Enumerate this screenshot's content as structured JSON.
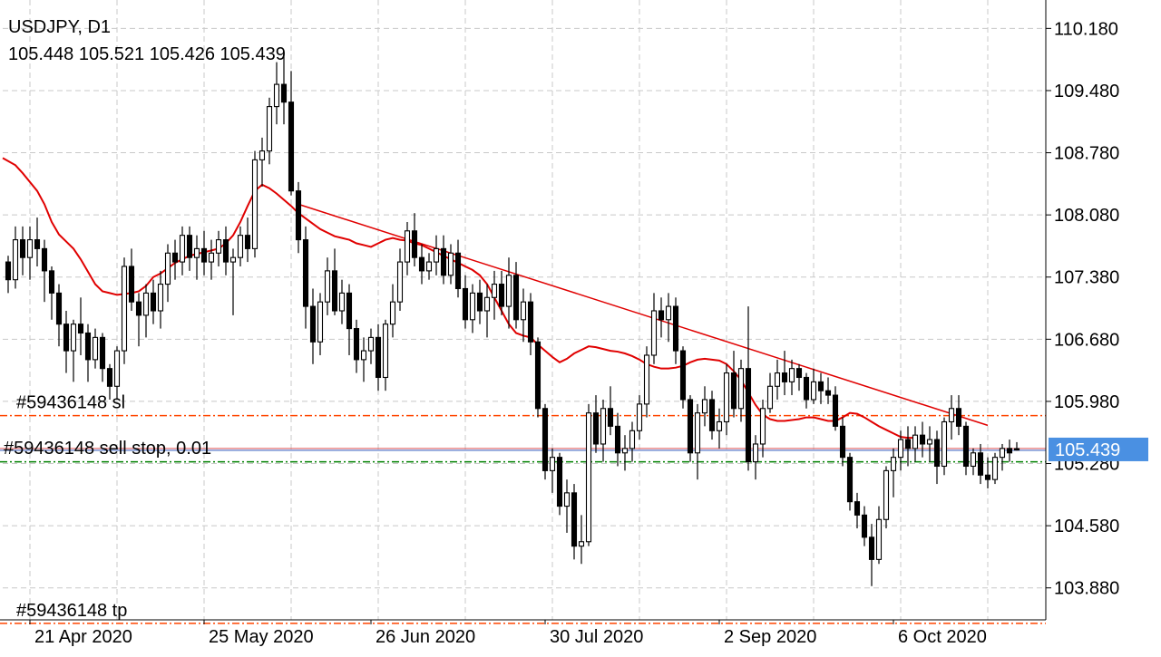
{
  "header": {
    "symbol_timeframe": "USDJPY, D1",
    "ohlc": "105.448 105.521 105.426 105.439"
  },
  "price_axis": {
    "current_price_label": "105.439"
  },
  "orders": {
    "sl_label": "#59436148 sl",
    "pending_label": "#59436148 sell stop, 0.01",
    "tp_label": "#59436148 tp"
  },
  "colors": {
    "background": "#ffffff",
    "grid": "#c8c8c8",
    "candle": "#000000",
    "moving_average": "#e00000",
    "trendline": "#e00000",
    "sl_line": "#ff4500",
    "tp_line": "#ff4500",
    "order_line": "#008000",
    "price_line": "#4a6fc7",
    "price_tag_bg": "#4a90e2"
  },
  "chart_data": {
    "type": "candlestick",
    "symbol": "USDJPY",
    "timeframe": "D1",
    "ylim": [
      103.52,
      110.5
    ],
    "yticks": [
      110.18,
      109.48,
      108.78,
      108.08,
      107.38,
      106.68,
      105.98,
      105.28,
      104.58,
      103.88
    ],
    "ytick_labels": [
      "110.180",
      "109.480",
      "108.780",
      "108.080",
      "107.380",
      "106.680",
      "105.980",
      "105.280",
      "104.580",
      "103.880"
    ],
    "xtick_labels": [
      "21 Apr 2020",
      "25 May 2020",
      "26 Jun 2020",
      "30 Jul 2020",
      "2 Sep 2020",
      "6 Oct 2020"
    ],
    "xtick_bars": [
      3,
      27,
      50,
      74,
      98,
      122
    ],
    "grid": true,
    "current_price": 105.439,
    "levels": {
      "stop_loss": 105.82,
      "sell_stop": 105.45,
      "order_marker": 105.3,
      "take_profit": 103.48
    },
    "trendline": {
      "start_bar": 40,
      "start_price": 108.2,
      "end_bar": 135,
      "end_price": 105.71
    },
    "candles": [
      [
        107.55,
        107.62,
        107.2,
        107.35
      ],
      [
        107.35,
        107.95,
        107.25,
        107.8
      ],
      [
        107.8,
        107.95,
        107.4,
        107.6
      ],
      [
        107.6,
        107.95,
        107.35,
        107.8
      ],
      [
        107.8,
        108.05,
        107.5,
        107.7
      ],
      [
        107.7,
        107.8,
        107.1,
        107.45
      ],
      [
        107.45,
        107.5,
        106.9,
        107.2
      ],
      [
        107.2,
        107.3,
        106.6,
        106.85
      ],
      [
        106.85,
        107.0,
        106.3,
        106.55
      ],
      [
        106.55,
        106.9,
        106.2,
        106.85
      ],
      [
        106.85,
        107.15,
        106.5,
        106.75
      ],
      [
        106.75,
        106.85,
        106.2,
        106.45
      ],
      [
        106.45,
        106.8,
        106.35,
        106.7
      ],
      [
        106.7,
        106.75,
        106.2,
        106.35
      ],
      [
        106.35,
        106.4,
        106.0,
        106.15
      ],
      [
        106.15,
        106.6,
        106.0,
        106.55
      ],
      [
        106.55,
        107.6,
        106.4,
        107.5
      ],
      [
        107.5,
        107.7,
        107.0,
        107.1
      ],
      [
        107.1,
        107.2,
        106.6,
        106.95
      ],
      [
        106.95,
        107.3,
        106.7,
        107.2
      ],
      [
        107.2,
        107.35,
        106.85,
        107.0
      ],
      [
        107.0,
        107.45,
        106.8,
        107.3
      ],
      [
        107.3,
        107.75,
        107.1,
        107.65
      ],
      [
        107.65,
        107.8,
        107.35,
        107.55
      ],
      [
        107.55,
        107.95,
        107.4,
        107.85
      ],
      [
        107.85,
        107.95,
        107.45,
        107.6
      ],
      [
        107.6,
        107.85,
        107.35,
        107.7
      ],
      [
        107.7,
        107.9,
        107.4,
        107.55
      ],
      [
        107.55,
        107.8,
        107.35,
        107.65
      ],
      [
        107.65,
        107.9,
        107.5,
        107.8
      ],
      [
        107.8,
        107.95,
        107.4,
        107.55
      ],
      [
        107.55,
        107.7,
        106.95,
        107.6
      ],
      [
        107.6,
        107.95,
        107.5,
        107.85
      ],
      [
        107.85,
        108.05,
        107.55,
        107.7
      ],
      [
        107.7,
        108.8,
        107.6,
        108.7
      ],
      [
        108.7,
        108.95,
        108.4,
        108.8
      ],
      [
        108.8,
        109.4,
        108.65,
        109.3
      ],
      [
        109.3,
        109.8,
        109.1,
        109.55
      ],
      [
        109.55,
        109.9,
        109.1,
        109.35
      ],
      [
        109.35,
        109.7,
        108.3,
        108.35
      ],
      [
        108.35,
        108.45,
        107.65,
        107.8
      ],
      [
        107.8,
        107.95,
        106.8,
        107.05
      ],
      [
        107.05,
        107.25,
        106.4,
        106.65
      ],
      [
        106.65,
        107.2,
        106.5,
        107.1
      ],
      [
        107.1,
        107.6,
        106.95,
        107.45
      ],
      [
        107.45,
        107.7,
        106.95,
        107.0
      ],
      [
        107.0,
        107.35,
        106.85,
        107.2
      ],
      [
        107.2,
        107.3,
        106.5,
        106.8
      ],
      [
        106.8,
        106.9,
        106.3,
        106.45
      ],
      [
        106.45,
        106.7,
        106.2,
        106.55
      ],
      [
        106.55,
        106.8,
        106.4,
        106.7
      ],
      [
        106.7,
        106.85,
        106.1,
        106.25
      ],
      [
        106.25,
        106.9,
        106.1,
        106.85
      ],
      [
        106.85,
        107.3,
        106.7,
        107.1
      ],
      [
        107.1,
        107.7,
        107.0,
        107.55
      ],
      [
        107.55,
        108.0,
        107.4,
        107.9
      ],
      [
        107.9,
        108.1,
        107.5,
        107.6
      ],
      [
        107.6,
        107.75,
        107.3,
        107.45
      ],
      [
        107.45,
        107.65,
        107.35,
        107.55
      ],
      [
        107.55,
        107.85,
        107.4,
        107.7
      ],
      [
        107.7,
        107.85,
        107.3,
        107.4
      ],
      [
        107.4,
        107.75,
        107.3,
        107.65
      ],
      [
        107.65,
        107.8,
        107.15,
        107.25
      ],
      [
        107.25,
        107.4,
        106.8,
        106.9
      ],
      [
        106.9,
        107.3,
        106.75,
        107.2
      ],
      [
        107.2,
        107.35,
        106.85,
        107.0
      ],
      [
        107.0,
        107.3,
        106.7,
        107.15
      ],
      [
        107.15,
        107.45,
        106.9,
        107.3
      ],
      [
        107.3,
        107.45,
        106.95,
        107.05
      ],
      [
        107.05,
        107.6,
        106.8,
        107.4
      ],
      [
        107.4,
        107.55,
        106.8,
        106.9
      ],
      [
        106.9,
        107.25,
        106.65,
        107.1
      ],
      [
        107.1,
        107.2,
        106.5,
        106.65
      ],
      [
        106.65,
        106.7,
        105.8,
        105.9
      ],
      [
        105.9,
        105.95,
        105.1,
        105.2
      ],
      [
        105.2,
        105.45,
        104.95,
        105.35
      ],
      [
        105.35,
        105.4,
        104.7,
        104.8
      ],
      [
        104.8,
        105.1,
        104.5,
        104.95
      ],
      [
        104.95,
        105.05,
        104.2,
        104.35
      ],
      [
        104.35,
        104.7,
        104.15,
        104.4
      ],
      [
        104.4,
        105.95,
        104.35,
        105.85
      ],
      [
        105.85,
        106.05,
        105.4,
        105.5
      ],
      [
        105.5,
        106.0,
        105.3,
        105.9
      ],
      [
        105.9,
        106.15,
        105.6,
        105.7
      ],
      [
        105.7,
        105.85,
        105.25,
        105.4
      ],
      [
        105.4,
        105.6,
        105.2,
        105.45
      ],
      [
        105.45,
        105.75,
        105.3,
        105.65
      ],
      [
        105.65,
        106.05,
        105.55,
        105.95
      ],
      [
        105.95,
        106.6,
        105.8,
        106.5
      ],
      [
        106.5,
        107.2,
        106.4,
        107.0
      ],
      [
        107.0,
        107.15,
        106.7,
        106.9
      ],
      [
        106.9,
        107.2,
        106.65,
        107.05
      ],
      [
        107.05,
        107.15,
        106.4,
        106.55
      ],
      [
        106.55,
        106.6,
        105.9,
        106.0
      ],
      [
        106.0,
        106.05,
        105.3,
        105.4
      ],
      [
        105.4,
        105.95,
        105.1,
        105.85
      ],
      [
        105.85,
        106.15,
        105.7,
        106.0
      ],
      [
        106.0,
        106.1,
        105.55,
        105.65
      ],
      [
        105.65,
        105.9,
        105.45,
        105.75
      ],
      [
        105.75,
        106.4,
        105.6,
        106.3
      ],
      [
        106.3,
        106.55,
        105.8,
        105.9
      ],
      [
        105.9,
        106.45,
        105.75,
        106.35
      ],
      [
        106.35,
        107.05,
        105.2,
        105.3
      ],
      [
        105.3,
        105.6,
        105.1,
        105.5
      ],
      [
        105.5,
        106.0,
        105.35,
        105.9
      ],
      [
        105.9,
        106.3,
        105.85,
        106.15
      ],
      [
        106.15,
        106.45,
        106.0,
        106.3
      ],
      [
        106.3,
        106.55,
        106.05,
        106.2
      ],
      [
        106.2,
        106.45,
        106.05,
        106.35
      ],
      [
        106.35,
        106.4,
        106.1,
        106.25
      ],
      [
        106.25,
        106.3,
        105.9,
        106.0
      ],
      [
        106.0,
        106.35,
        105.95,
        106.2
      ],
      [
        106.2,
        106.3,
        105.95,
        106.1
      ],
      [
        106.1,
        106.25,
        105.95,
        106.05
      ],
      [
        106.05,
        106.15,
        105.65,
        105.7
      ],
      [
        105.7,
        105.8,
        105.25,
        105.35
      ],
      [
        105.35,
        105.4,
        104.75,
        104.85
      ],
      [
        104.85,
        104.95,
        104.55,
        104.7
      ],
      [
        104.7,
        104.8,
        104.35,
        104.45
      ],
      [
        104.45,
        104.6,
        103.9,
        104.2
      ],
      [
        104.2,
        104.8,
        104.15,
        104.65
      ],
      [
        104.65,
        105.25,
        104.55,
        105.2
      ],
      [
        105.2,
        105.45,
        104.9,
        105.35
      ],
      [
        105.35,
        105.65,
        105.2,
        105.55
      ],
      [
        105.55,
        105.7,
        105.25,
        105.45
      ],
      [
        105.45,
        105.7,
        105.3,
        105.6
      ],
      [
        105.6,
        105.75,
        105.35,
        105.5
      ],
      [
        105.5,
        105.7,
        105.3,
        105.55
      ],
      [
        105.55,
        105.65,
        105.05,
        105.25
      ],
      [
        105.25,
        105.8,
        105.15,
        105.75
      ],
      [
        105.75,
        106.05,
        105.55,
        105.9
      ],
      [
        105.9,
        106.05,
        105.6,
        105.7
      ],
      [
        105.7,
        105.75,
        105.15,
        105.25
      ],
      [
        105.25,
        105.45,
        105.15,
        105.4
      ],
      [
        105.4,
        105.5,
        105.05,
        105.15
      ],
      [
        105.15,
        105.35,
        105.0,
        105.1
      ],
      [
        105.1,
        105.4,
        105.05,
        105.35
      ],
      [
        105.35,
        105.5,
        105.2,
        105.45
      ],
      [
        105.45,
        105.55,
        105.3,
        105.4
      ],
      [
        105.448,
        105.521,
        105.426,
        105.439
      ]
    ],
    "moving_average": [
      108.72,
      108.64,
      108.55,
      108.45,
      108.35,
      108.2,
      108.0,
      107.86,
      107.78,
      107.7,
      107.58,
      107.44,
      107.3,
      107.22,
      107.2,
      107.18,
      107.19,
      107.2,
      107.22,
      107.28,
      107.38,
      107.42,
      107.48,
      107.54,
      107.58,
      107.62,
      107.64,
      107.66,
      107.68,
      107.7,
      107.76,
      107.85,
      108.0,
      108.18,
      108.35,
      108.42,
      108.38,
      108.32,
      108.25,
      108.18,
      108.1,
      108.04,
      107.98,
      107.92,
      107.88,
      107.84,
      107.82,
      107.8,
      107.76,
      107.74,
      107.72,
      107.76,
      107.8,
      107.82,
      107.8,
      107.79,
      107.76,
      107.74,
      107.7,
      107.66,
      107.62,
      107.58,
      107.54,
      107.5,
      107.46,
      107.4,
      107.3,
      107.15,
      107.0,
      106.85,
      106.75,
      106.72,
      106.7,
      106.62,
      106.55,
      106.48,
      106.42,
      106.46,
      106.52,
      106.56,
      106.6,
      106.59,
      106.57,
      106.55,
      106.54,
      106.52,
      106.49,
      106.45,
      106.4,
      106.37,
      106.35,
      106.35,
      106.36,
      106.38,
      106.42,
      106.45,
      106.46,
      106.45,
      106.44,
      106.4,
      106.32,
      106.22,
      106.08,
      105.94,
      105.83,
      105.78,
      105.76,
      105.76,
      105.77,
      105.78,
      105.8,
      105.8,
      105.78,
      105.76,
      105.76,
      105.8,
      105.85,
      105.84,
      105.8,
      105.75,
      105.7,
      105.66,
      105.62,
      105.58,
      105.57,
      105.57
    ]
  }
}
